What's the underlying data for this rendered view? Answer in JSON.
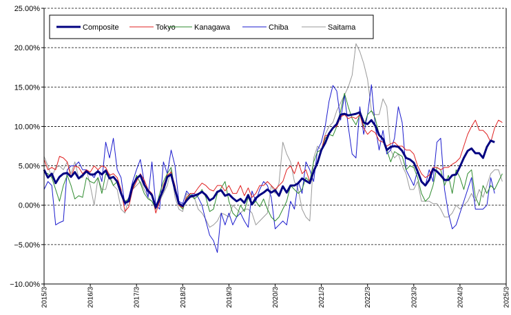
{
  "chart_data": {
    "type": "line",
    "title": "",
    "xlabel": "",
    "ylabel": "",
    "ylim": [
      -10,
      25
    ],
    "yticks": [
      -10,
      -5,
      0,
      5,
      10,
      15,
      20,
      25
    ],
    "ytick_labels": [
      "−10.00%",
      "−5.00%",
      "0.00%",
      "5.00%",
      "10.00%",
      "15.00%",
      "20.00%",
      "25.00%"
    ],
    "x_tick_labels": [
      "2015/3",
      "2016/3",
      "2017/3",
      "2018/3",
      "2019/3",
      "2020/3",
      "2021/3",
      "2022/3",
      "2023/3",
      "2024/3",
      "2025/3"
    ],
    "x_start": "2015-03",
    "x_end": "2025-03",
    "grid": "horizontal dashed",
    "legend_position": "top-left",
    "series": [
      {
        "name": "Composite",
        "color": "#000080",
        "width": 3,
        "values": [
          4.5,
          3.5,
          4.0,
          2.8,
          3.6,
          4.0,
          4.1,
          3.6,
          4.2,
          3.4,
          3.8,
          4.3,
          3.9,
          3.9,
          4.3,
          3.9,
          4.4,
          3.4,
          3.6,
          3.0,
          1.5,
          0.3,
          0.5,
          2.5,
          3.4,
          3.8,
          2.6,
          1.8,
          1.3,
          -0.3,
          0.9,
          2.0,
          3.6,
          3.9,
          2.0,
          0.2,
          -0.1,
          0.6,
          1.1,
          1.2,
          1.4,
          1.7,
          1.3,
          0.6,
          0.9,
          1.7,
          1.9,
          1.2,
          1.4,
          0.9,
          0.5,
          0.8,
          0.3,
          1.3,
          0.1,
          0.9,
          1.3,
          1.6,
          2.0,
          1.6,
          1.9,
          1.2,
          2.4,
          1.6,
          2.5,
          2.5,
          2.8,
          3.4,
          3.1,
          2.8,
          4.3,
          5.4,
          7.0,
          7.9,
          9.1,
          9.8,
          10.3,
          11.5,
          11.6,
          11.4,
          11.5,
          11.6,
          11.8,
          10.5,
          10.3,
          10.8,
          10.1,
          8.9,
          8.4,
          7.0,
          7.4,
          7.5,
          7.4,
          6.9,
          6.0,
          5.8,
          5.4,
          4.3,
          3.0,
          2.5,
          3.2,
          4.6,
          4.3,
          3.8,
          3.2,
          3.2,
          3.8,
          3.9,
          4.9,
          6.0,
          6.9,
          7.2,
          6.6,
          6.6,
          6.0,
          7.4,
          8.2,
          8.0
        ]
      },
      {
        "name": "Tokyo",
        "color": "#e02020",
        "width": 1,
        "values": [
          5.8,
          4.5,
          4.8,
          4.5,
          6.2,
          6.0,
          5.5,
          3.5,
          5.0,
          4.8,
          4.0,
          4.5,
          4.2,
          5.0,
          4.5,
          5.0,
          4.8,
          3.8,
          4.0,
          3.5,
          2.0,
          -0.8,
          -0.2,
          2.0,
          3.0,
          4.0,
          3.2,
          2.0,
          1.5,
          -1.0,
          0.5,
          2.5,
          3.8,
          4.2,
          2.5,
          0.0,
          -0.3,
          1.0,
          1.5,
          1.5,
          2.2,
          2.8,
          2.5,
          2.0,
          1.8,
          2.5,
          2.5,
          1.8,
          2.5,
          1.5,
          1.5,
          2.5,
          1.2,
          2.2,
          1.0,
          1.5,
          2.5,
          2.5,
          3.0,
          2.5,
          2.0,
          2.5,
          3.0,
          4.5,
          5.0,
          4.0,
          5.5,
          4.0,
          4.5,
          3.0,
          4.5,
          5.5,
          7.0,
          8.8,
          9.0,
          9.8,
          10.0,
          11.2,
          11.5,
          11.0,
          11.2,
          11.0,
          11.5,
          9.8,
          9.0,
          9.5,
          9.2,
          8.2,
          8.0,
          7.5,
          7.8,
          8.0,
          7.5,
          7.5,
          7.0,
          7.0,
          6.5,
          5.0,
          4.0,
          3.5,
          3.8,
          4.8,
          4.8,
          4.5,
          4.8,
          4.8,
          5.2,
          5.5,
          6.0,
          7.5,
          9.0,
          10.0,
          10.8,
          9.5,
          9.5,
          9.0,
          8.0,
          9.8,
          10.8,
          10.5
        ]
      },
      {
        "name": "Kanagawa",
        "color": "#2e8b2e",
        "width": 1,
        "values": [
          4.2,
          4.0,
          3.5,
          2.0,
          0.5,
          2.5,
          3.8,
          2.5,
          0.8,
          1.2,
          1.0,
          3.5,
          3.0,
          2.8,
          3.5,
          1.5,
          4.0,
          3.5,
          2.5,
          3.0,
          1.5,
          0.5,
          0.8,
          2.0,
          3.8,
          2.8,
          1.5,
          0.8,
          0.5,
          -0.5,
          1.5,
          3.0,
          4.0,
          4.8,
          1.8,
          0.0,
          -0.5,
          0.8,
          1.5,
          0.8,
          1.2,
          2.0,
          1.0,
          -0.8,
          -0.5,
          1.5,
          2.2,
          3.0,
          0.5,
          -1.0,
          -1.5,
          0.0,
          -0.8,
          1.0,
          0.0,
          0.5,
          -0.2,
          0.8,
          -0.5,
          -1.5,
          -2.0,
          -1.5,
          -0.5,
          0.5,
          2.5,
          2.0,
          1.5,
          2.0,
          3.5,
          3.0,
          5.5,
          6.8,
          7.0,
          8.5,
          9.0,
          8.8,
          10.0,
          12.0,
          14.2,
          12.5,
          11.0,
          10.2,
          11.5,
          10.0,
          11.5,
          12.0,
          11.0,
          9.0,
          8.5,
          7.0,
          5.5,
          6.8,
          6.5,
          6.2,
          4.5,
          5.0,
          4.8,
          3.5,
          1.5,
          0.5,
          1.0,
          2.5,
          4.8,
          4.5,
          2.5,
          3.8,
          1.5,
          4.5,
          3.5,
          2.0,
          4.0,
          4.5,
          1.0,
          0.0,
          2.5,
          1.5,
          2.5,
          2.0,
          3.0,
          4.0
        ]
      },
      {
        "name": "Chiba",
        "color": "#1a1acd",
        "width": 1,
        "values": [
          2.0,
          3.0,
          2.5,
          -2.5,
          -2.2,
          -2.0,
          4.5,
          5.0,
          5.0,
          5.5,
          4.5,
          4.5,
          4.0,
          3.5,
          4.5,
          3.0,
          8.0,
          6.0,
          8.5,
          4.5,
          3.5,
          0.0,
          1.0,
          3.0,
          4.5,
          5.8,
          3.0,
          1.0,
          5.5,
          0.0,
          -0.5,
          5.5,
          4.0,
          7.0,
          5.0,
          0.5,
          0.2,
          1.8,
          1.2,
          1.5,
          1.0,
          0.0,
          -2.0,
          -3.8,
          -4.5,
          -6.0,
          -1.0,
          -2.5,
          -1.0,
          -2.5,
          -1.5,
          -1.0,
          -2.0,
          -2.8,
          1.8,
          0.5,
          2.0,
          3.0,
          2.5,
          1.0,
          -3.0,
          -2.5,
          -2.0,
          -2.5,
          0.5,
          -0.5,
          3.0,
          1.5,
          5.5,
          4.5,
          3.0,
          7.0,
          8.0,
          10.0,
          13.2,
          15.2,
          14.5,
          10.8,
          14.0,
          10.0,
          6.5,
          6.0,
          12.5,
          9.0,
          11.5,
          15.3,
          10.0,
          7.0,
          9.5,
          6.5,
          7.0,
          8.5,
          12.5,
          10.5,
          4.5,
          3.5,
          2.5,
          4.5,
          3.0,
          2.5,
          4.5,
          3.0,
          8.0,
          8.5,
          2.0,
          -1.0,
          -3.0,
          -2.5,
          -1.0,
          0.5,
          2.0,
          3.5,
          -0.5,
          -0.5,
          -0.5,
          0.0,
          3.5,
          1.5
        ]
      },
      {
        "name": "Saitama",
        "color": "#999999",
        "width": 1,
        "values": [
          6.2,
          5.0,
          3.5,
          4.8,
          5.0,
          4.5,
          5.5,
          4.0,
          5.5,
          3.5,
          3.5,
          4.5,
          2.5,
          0.0,
          3.5,
          2.0,
          2.0,
          4.0,
          2.5,
          2.0,
          -0.5,
          -1.0,
          1.0,
          2.0,
          2.5,
          3.0,
          2.0,
          1.0,
          0.5,
          -0.3,
          0.5,
          1.5,
          2.5,
          4.5,
          1.0,
          -0.5,
          -0.8,
          1.5,
          1.0,
          1.0,
          -0.5,
          -1.0,
          -1.8,
          -2.8,
          -2.5,
          -2.0,
          -1.0,
          -1.2,
          -1.5,
          0.0,
          -0.5,
          -1.0,
          -0.5,
          -0.5,
          -1.0,
          -2.5,
          -2.0,
          -1.5,
          -1.0,
          2.5,
          1.5,
          2.8,
          8.0,
          6.5,
          5.5,
          3.0,
          2.0,
          -0.5,
          -1.5,
          -2.0,
          6.0,
          7.5,
          7.0,
          9.0,
          10.0,
          10.5,
          12.0,
          13.0,
          14.0,
          15.0,
          16.5,
          20.5,
          19.5,
          18.0,
          16.0,
          12.0,
          11.5,
          11.5,
          13.5,
          12.5,
          7.0,
          6.0,
          6.5,
          5.0,
          4.0,
          2.0,
          2.0,
          3.0,
          0.5,
          0.5,
          0.5,
          0.2,
          0.2,
          -0.5,
          -1.5,
          -1.5,
          -1.0,
          0.0,
          -0.5,
          0.0,
          0.5,
          1.5,
          0.5,
          2.0,
          1.0,
          2.5,
          4.0,
          4.5,
          4.5,
          3.0
        ]
      }
    ]
  }
}
